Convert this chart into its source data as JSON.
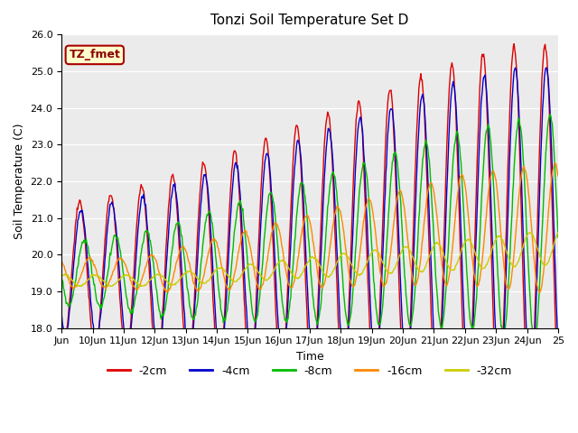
{
  "title": "Tonzi Soil Temperature Set D",
  "xlabel": "Time",
  "ylabel": "Soil Temperature (C)",
  "ylim": [
    18.0,
    26.0
  ],
  "yticks": [
    18.0,
    19.0,
    20.0,
    21.0,
    22.0,
    23.0,
    24.0,
    25.0,
    26.0
  ],
  "xtick_labels": [
    "Jun",
    "10Jun",
    "11Jun",
    "12Jun",
    "13Jun",
    "14Jun",
    "15Jun",
    "16Jun",
    "17Jun",
    "18Jun",
    "19Jun",
    "20Jun",
    "21Jun",
    "22Jun",
    "23Jun",
    "24Jun",
    "25"
  ],
  "annotation_text": "TZ_fmet",
  "annotation_bg": "#ffffcc",
  "annotation_border": "#aa0000",
  "legend_entries": [
    "-2cm",
    "-4cm",
    "-8cm",
    "-16cm",
    "-32cm"
  ],
  "line_colors": [
    "#dd0000",
    "#0000cc",
    "#00bb00",
    "#ff8800",
    "#cccc00"
  ],
  "bg_color": "#ebebeb",
  "fig_bg": "#ffffff",
  "grid_color": "#ffffff",
  "lw": 1.0
}
